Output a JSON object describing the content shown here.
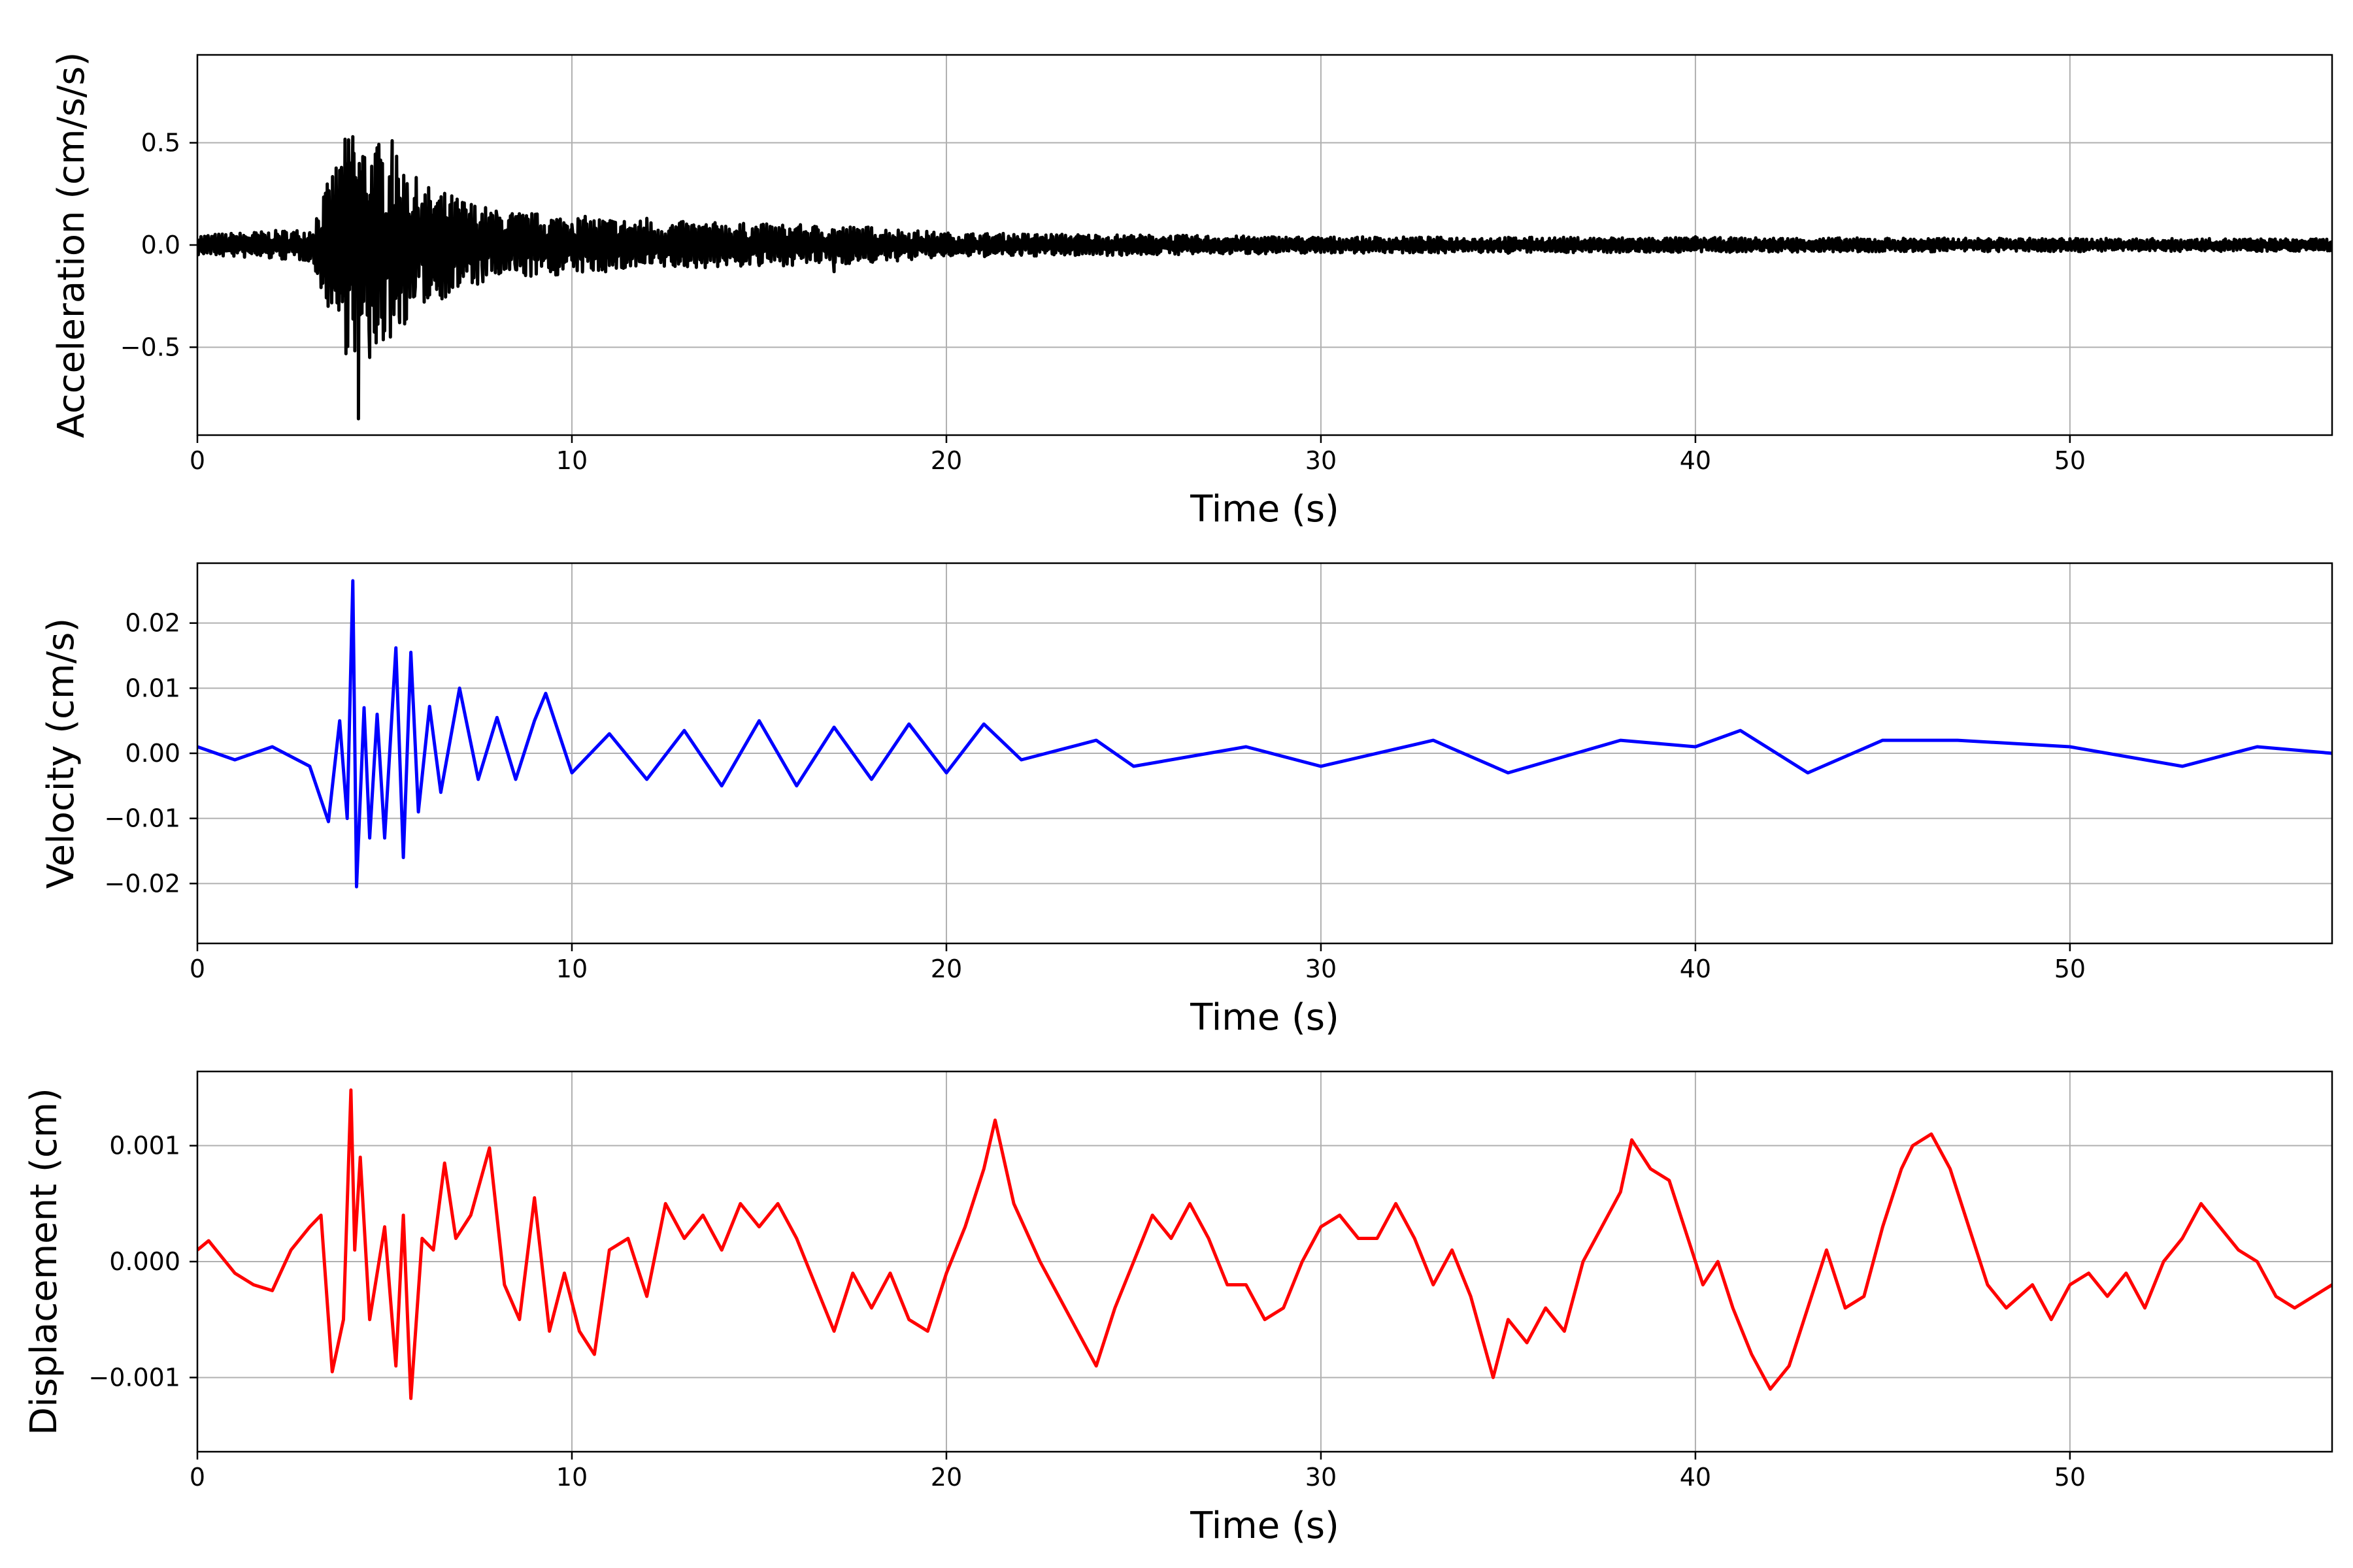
{
  "chart_data": [
    {
      "type": "line",
      "xlabel": "Time (s)",
      "ylabel": "Acceleration (cm/s/s)",
      "xlim": [
        0,
        57
      ],
      "ylim": [
        -0.93,
        0.93
      ],
      "x_ticks": [
        0,
        10,
        20,
        30,
        40,
        50
      ],
      "x_tick_labels": [
        "0",
        "10",
        "20",
        "30",
        "40",
        "50"
      ],
      "y_ticks": [
        0.5,
        0.0,
        -0.5
      ],
      "y_tick_labels": [
        "0.5",
        "0.0",
        "−0.5"
      ],
      "grid": true,
      "color": "#000000",
      "series": [
        {
          "x": [
            0,
            1,
            2,
            3,
            3.4,
            3.7,
            4.0,
            4.15,
            4.3,
            4.45,
            4.6,
            4.8,
            5.0,
            5.2,
            5.4,
            5.6,
            5.8,
            6.0,
            6.2,
            6.5,
            6.8,
            7.2,
            7.6,
            8.0,
            8.5,
            9.0,
            9.5,
            10,
            11,
            12,
            13,
            14,
            15,
            16,
            17,
            18,
            19,
            20,
            22,
            25,
            28,
            30,
            35,
            40,
            45,
            50,
            55,
            57
          ],
          "y": [
            0.0,
            0.04,
            -0.04,
            0.06,
            -0.15,
            0.22,
            -0.35,
            0.53,
            -0.85,
            0.3,
            -0.55,
            0.36,
            -0.42,
            0.51,
            -0.38,
            0.3,
            -0.25,
            0.2,
            -0.18,
            0.15,
            -0.14,
            0.12,
            -0.1,
            0.14,
            -0.12,
            0.1,
            -0.12,
            0.1,
            -0.1,
            0.13,
            -0.1,
            0.09,
            -0.1,
            0.08,
            -0.13,
            0.08,
            -0.06,
            0.05,
            -0.05,
            0.04,
            -0.04,
            0.03,
            -0.04,
            0.04,
            -0.03,
            0.03,
            -0.03,
            0.0
          ],
          "envelope": [
            [
              0,
              0.05
            ],
            [
              3,
              0.08
            ],
            [
              4,
              0.55
            ],
            [
              5,
              0.5
            ],
            [
              6,
              0.3
            ],
            [
              8,
              0.17
            ],
            [
              12,
              0.12
            ],
            [
              18,
              0.09
            ],
            [
              20,
              0.06
            ],
            [
              30,
              0.04
            ],
            [
              57,
              0.03
            ]
          ]
        }
      ]
    },
    {
      "type": "line",
      "xlabel": "Time (s)",
      "ylabel": "Velocity (cm/s)",
      "xlim": [
        0,
        57
      ],
      "ylim": [
        -0.0292,
        0.0292
      ],
      "x_ticks": [
        0,
        10,
        20,
        30,
        40,
        50
      ],
      "x_tick_labels": [
        "0",
        "10",
        "20",
        "30",
        "40",
        "50"
      ],
      "y_ticks": [
        0.02,
        0.01,
        0.0,
        -0.01,
        -0.02
      ],
      "y_tick_labels": [
        "0.02",
        "0.01",
        "0.00",
        "−0.01",
        "−0.02"
      ],
      "grid": true,
      "color": "#0000ff",
      "series": [
        {
          "x": [
            0,
            1,
            2,
            3,
            3.5,
            3.8,
            4.0,
            4.15,
            4.25,
            4.45,
            4.6,
            4.8,
            5.0,
            5.3,
            5.5,
            5.7,
            5.9,
            6.2,
            6.5,
            7.0,
            7.5,
            8.0,
            8.5,
            9.0,
            9.3,
            10,
            11,
            12,
            13,
            14,
            15,
            16,
            17,
            18,
            19,
            20,
            21,
            22,
            24,
            25,
            28,
            30,
            33,
            35,
            38,
            40,
            41.2,
            43,
            45,
            47,
            50,
            53,
            55,
            57
          ],
          "y": [
            0.001,
            -0.001,
            0.001,
            -0.002,
            -0.0105,
            0.005,
            -0.01,
            0.0265,
            -0.0205,
            0.007,
            -0.013,
            0.006,
            -0.013,
            0.0162,
            -0.016,
            0.0155,
            -0.009,
            0.0072,
            -0.006,
            0.01,
            -0.004,
            0.0055,
            -0.004,
            0.005,
            0.0092,
            -0.003,
            0.003,
            -0.004,
            0.0035,
            -0.005,
            0.005,
            -0.005,
            0.004,
            -0.004,
            0.0045,
            -0.003,
            0.0045,
            -0.001,
            0.002,
            -0.002,
            0.001,
            -0.002,
            0.002,
            -0.003,
            0.002,
            0.001,
            0.0035,
            -0.003,
            0.002,
            0.002,
            0.001,
            -0.002,
            0.001,
            0.0
          ]
        }
      ]
    },
    {
      "type": "line",
      "xlabel": "Time (s)",
      "ylabel": "Displacement (cm)",
      "xlim": [
        0,
        57
      ],
      "ylim": [
        -0.00164,
        0.00164
      ],
      "x_ticks": [
        0,
        10,
        20,
        30,
        40,
        50
      ],
      "x_tick_labels": [
        "0",
        "10",
        "20",
        "30",
        "40",
        "50"
      ],
      "y_ticks": [
        0.001,
        0.0,
        -0.001
      ],
      "y_tick_labels": [
        "0.001",
        "0.000",
        "−0.001"
      ],
      "grid": true,
      "color": "#ff0000",
      "series": [
        {
          "x": [
            0,
            0.3,
            1,
            1.5,
            2,
            2.5,
            3,
            3.3,
            3.6,
            3.9,
            4.1,
            4.2,
            4.35,
            4.6,
            5.0,
            5.3,
            5.5,
            5.7,
            6.0,
            6.3,
            6.6,
            6.9,
            7.3,
            7.8,
            8.2,
            8.6,
            9.0,
            9.4,
            9.8,
            10.2,
            10.6,
            11.0,
            11.5,
            12,
            12.5,
            13,
            13.5,
            14,
            14.5,
            15,
            15.5,
            16,
            16.5,
            17,
            17.5,
            18,
            18.5,
            19,
            19.5,
            20,
            20.5,
            21,
            21.3,
            21.8,
            22.5,
            23,
            23.5,
            24,
            24.5,
            25,
            25.5,
            26,
            26.5,
            27,
            27.5,
            28,
            28.5,
            29,
            29.5,
            30,
            30.5,
            31,
            31.5,
            32,
            32.5,
            33,
            33.5,
            34,
            34.6,
            35,
            35.5,
            36,
            36.5,
            37,
            37.5,
            38,
            38.3,
            38.8,
            39.3,
            39.8,
            40.2,
            40.6,
            41.0,
            41.5,
            42.0,
            42.5,
            43,
            43.5,
            44,
            44.5,
            45,
            45.5,
            45.8,
            46.3,
            46.8,
            47.3,
            47.8,
            48.3,
            49,
            49.5,
            50,
            50.5,
            51,
            51.5,
            52,
            52.5,
            53,
            53.5,
            54,
            54.5,
            55,
            55.5,
            56,
            56.5,
            57
          ],
          "y": [
            0.0001,
            0.00018,
            -0.0001,
            -0.0002,
            -0.00025,
            0.0001,
            0.0003,
            0.0004,
            -0.00095,
            -0.0005,
            0.00148,
            0.0001,
            0.0009,
            -0.0005,
            0.0003,
            -0.0009,
            0.0004,
            -0.00118,
            0.0002,
            0.0001,
            0.00085,
            0.0002,
            0.0004,
            0.00098,
            -0.0002,
            -0.0005,
            0.00055,
            -0.0006,
            -0.0001,
            -0.0006,
            -0.0008,
            0.0001,
            0.0002,
            -0.0003,
            0.0005,
            0.0002,
            0.0004,
            0.0001,
            0.0005,
            0.0003,
            0.0005,
            0.0002,
            -0.0002,
            -0.0006,
            -0.0001,
            -0.0004,
            -0.0001,
            -0.0005,
            -0.0006,
            -0.0001,
            0.0003,
            0.0008,
            0.00122,
            0.0005,
            0.0,
            -0.0003,
            -0.0006,
            -0.0009,
            -0.0004,
            0.0,
            0.0004,
            0.0002,
            0.0005,
            0.0002,
            -0.0002,
            -0.0002,
            -0.0005,
            -0.0004,
            0.0,
            0.0003,
            0.0004,
            0.0002,
            0.0002,
            0.0005,
            0.0002,
            -0.0002,
            0.0001,
            -0.0003,
            -0.001,
            -0.0005,
            -0.0007,
            -0.0004,
            -0.0006,
            0.0,
            0.0003,
            0.0006,
            0.00105,
            0.0008,
            0.0007,
            0.0002,
            -0.0002,
            0.0,
            -0.0004,
            -0.0008,
            -0.0011,
            -0.0009,
            -0.0004,
            0.0001,
            -0.0004,
            -0.0003,
            0.0003,
            0.0008,
            0.001,
            0.0011,
            0.0008,
            0.0003,
            -0.0002,
            -0.0004,
            -0.0002,
            -0.0005,
            -0.0002,
            -0.0001,
            -0.0003,
            -0.0001,
            -0.0004,
            0.0,
            0.0002,
            0.0005,
            0.0003,
            0.0001,
            0.0,
            -0.0003,
            -0.0004,
            -0.0003,
            -0.0002
          ]
        }
      ]
    }
  ]
}
